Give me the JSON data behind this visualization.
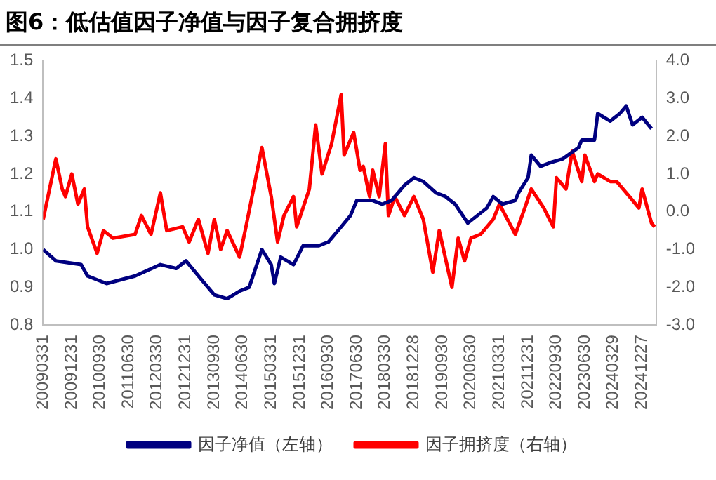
{
  "chart_data": {
    "type": "line",
    "title": "图6：低估值因子净值与因子复合拥挤度",
    "xlim": [
      "2009-03-31",
      "2025-05-15"
    ],
    "xticks": [
      {
        "value": "2009-03-31",
        "label": "20090331"
      },
      {
        "value": "2009-12-31",
        "label": "20091231"
      },
      {
        "value": "2010-09-30",
        "label": "20100930"
      },
      {
        "value": "2011-06-30",
        "label": "20110630"
      },
      {
        "value": "2012-03-30",
        "label": "20120330"
      },
      {
        "value": "2012-12-31",
        "label": "20121231"
      },
      {
        "value": "2013-09-30",
        "label": "20130930"
      },
      {
        "value": "2014-06-30",
        "label": "20140630"
      },
      {
        "value": "2015-03-31",
        "label": "20150331"
      },
      {
        "value": "2015-12-31",
        "label": "20151231"
      },
      {
        "value": "2016-09-30",
        "label": "20160930"
      },
      {
        "value": "2017-06-30",
        "label": "20170630"
      },
      {
        "value": "2018-03-30",
        "label": "20180330"
      },
      {
        "value": "2018-12-28",
        "label": "20181228"
      },
      {
        "value": "2019-09-30",
        "label": "20190930"
      },
      {
        "value": "2020-06-30",
        "label": "20200630"
      },
      {
        "value": "2021-03-31",
        "label": "20210331"
      },
      {
        "value": "2021-12-31",
        "label": "20211231"
      },
      {
        "value": "2022-09-30",
        "label": "20220930"
      },
      {
        "value": "2023-06-30",
        "label": "20230630"
      },
      {
        "value": "2024-03-29",
        "label": "20240329"
      },
      {
        "value": "2024-12-27",
        "label": "20241227"
      }
    ],
    "ylim": [
      0.8,
      1.5
    ],
    "yticks": [
      {
        "value": 0.8,
        "label": "0.8"
      },
      0.9,
      {
        "value": 1,
        "label": "1.0"
      },
      1.1,
      1.2,
      1.3,
      1.4,
      1.5
    ],
    "y2lim": [
      -3,
      4
    ],
    "y2ticks": [
      {
        "value": -3,
        "label": "-3.0"
      },
      {
        "value": -2,
        "label": "-2.0"
      },
      {
        "value": -1,
        "label": "-1.0"
      },
      {
        "value": 0,
        "label": "0.0"
      },
      {
        "value": 1,
        "label": "1.0"
      },
      {
        "value": 2,
        "label": "2.0"
      },
      {
        "value": 3,
        "label": "3.0"
      },
      {
        "value": 4,
        "label": "4.0"
      }
    ],
    "legend": "bottom",
    "grid": false,
    "marker": "none",
    "line_style": "solid",
    "series": [
      {
        "name": "因子净值（左轴）",
        "color": "#000080",
        "axis": "y",
        "x": [
          "2009-04",
          "2009-08",
          "2010-04",
          "2010-06",
          "2010-12",
          "2011-09",
          "2012-05",
          "2012-10",
          "2013-01",
          "2013-06",
          "2013-10",
          "2014-02",
          "2014-06",
          "2014-09",
          "2015-01",
          "2015-04",
          "2015-05",
          "2015-07",
          "2015-11",
          "2016-02",
          "2016-07",
          "2016-10",
          "2017-02",
          "2017-05",
          "2017-07",
          "2017-12",
          "2018-03",
          "2018-06",
          "2018-10",
          "2019-01",
          "2019-04",
          "2019-08",
          "2019-11",
          "2020-02",
          "2020-06",
          "2020-09",
          "2020-12",
          "2021-02",
          "2021-05",
          "2021-09",
          "2021-10",
          "2022-01",
          "2022-02",
          "2022-05",
          "2022-08",
          "2022-12",
          "2023-05",
          "2023-06",
          "2023-10",
          "2023-11",
          "2024-03",
          "2024-06",
          "2024-08",
          "2024-10",
          "2025-01",
          "2025-04"
        ],
        "values": [
          1.0,
          0.97,
          0.96,
          0.93,
          0.91,
          0.93,
          0.96,
          0.95,
          0.97,
          0.92,
          0.88,
          0.87,
          0.89,
          0.9,
          1.0,
          0.96,
          0.91,
          0.98,
          0.96,
          1.01,
          1.01,
          1.02,
          1.06,
          1.09,
          1.13,
          1.13,
          1.12,
          1.13,
          1.17,
          1.19,
          1.18,
          1.15,
          1.14,
          1.12,
          1.07,
          1.09,
          1.11,
          1.14,
          1.12,
          1.13,
          1.15,
          1.19,
          1.25,
          1.22,
          1.23,
          1.24,
          1.27,
          1.29,
          1.29,
          1.36,
          1.34,
          1.36,
          1.38,
          1.33,
          1.35,
          1.32
        ]
      },
      {
        "name": "因子拥挤度（右轴）",
        "color": "#ff0000",
        "axis": "y2",
        "x": [
          "2009-04",
          "2009-06",
          "2009-08",
          "2009-10",
          "2009-11",
          "2010-01",
          "2010-03",
          "2010-05",
          "2010-06",
          "2010-09",
          "2010-11",
          "2011-02",
          "2011-09",
          "2011-11",
          "2012-02",
          "2012-05",
          "2012-07",
          "2012-12",
          "2013-02",
          "2013-05",
          "2013-08",
          "2013-10",
          "2013-12",
          "2014-02",
          "2014-06",
          "2014-08",
          "2015-01",
          "2015-04",
          "2015-06",
          "2015-08",
          "2015-11",
          "2015-12",
          "2016-04",
          "2016-06",
          "2016-08",
          "2016-11",
          "2017-02",
          "2017-03",
          "2017-06",
          "2017-08",
          "2017-09",
          "2017-11",
          "2017-12",
          "2018-02",
          "2018-04",
          "2018-05",
          "2018-07",
          "2018-10",
          "2019-01",
          "2019-04",
          "2019-07",
          "2019-09",
          "2020-01",
          "2020-03",
          "2020-05",
          "2020-07",
          "2020-10",
          "2021-02",
          "2021-04",
          "2021-09",
          "2021-12",
          "2022-02",
          "2022-06",
          "2022-09",
          "2022-10",
          "2023-01",
          "2023-03",
          "2023-06",
          "2023-07",
          "2023-10",
          "2023-11",
          "2024-03",
          "2024-05",
          "2024-09",
          "2024-12",
          "2025-01",
          "2025-04",
          "2025-05"
        ],
        "values": [
          -0.2,
          0.6,
          1.4,
          0.6,
          0.4,
          1.0,
          0.2,
          0.6,
          -0.4,
          -1.1,
          -0.5,
          -0.7,
          -0.6,
          -0.1,
          -0.6,
          0.5,
          -0.5,
          -0.4,
          -0.8,
          -0.2,
          -1.1,
          -0.2,
          -1.0,
          -0.5,
          -1.2,
          -0.4,
          1.7,
          0.4,
          -0.8,
          -0.1,
          0.4,
          -0.4,
          0.6,
          2.3,
          1.0,
          1.8,
          3.1,
          1.5,
          2.1,
          1.1,
          1.2,
          0.4,
          1.1,
          0.4,
          1.8,
          -0.1,
          0.4,
          -0.1,
          0.4,
          -0.2,
          -1.6,
          -0.5,
          -2.0,
          -0.7,
          -1.3,
          -0.7,
          -0.6,
          -0.2,
          0.2,
          -0.6,
          0.1,
          0.6,
          0.1,
          -0.4,
          0.9,
          0.6,
          1.6,
          0.8,
          1.5,
          0.8,
          1.0,
          0.8,
          0.8,
          0.4,
          0.1,
          0.6,
          -0.3,
          -0.4
        ]
      }
    ]
  }
}
